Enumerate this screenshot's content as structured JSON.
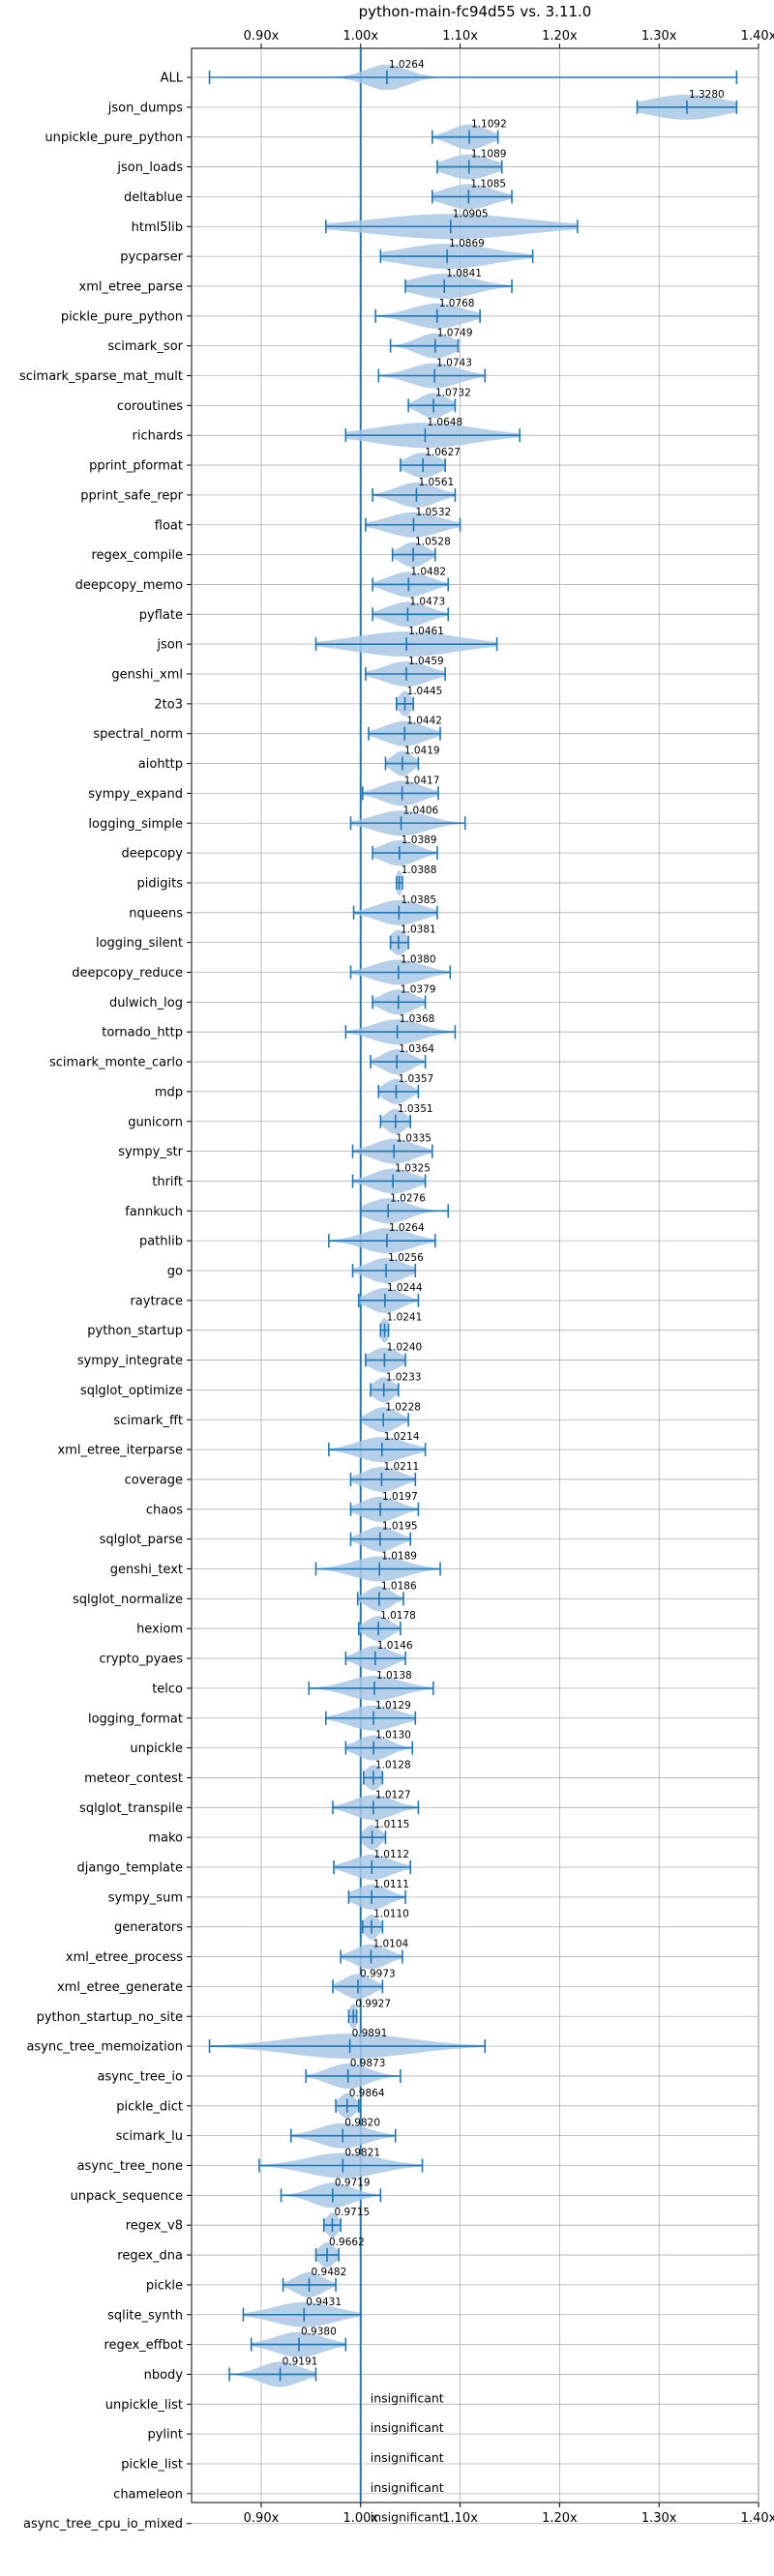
{
  "chart_data": {
    "type": "violin",
    "title": "python-main-fc94d55 vs. 3.11.0",
    "xlim": [
      0.83,
      1.4
    ],
    "x_ticks": [
      0.9,
      1.0,
      1.1,
      1.2,
      1.3,
      1.4
    ],
    "x_tick_labels": [
      "0.90x",
      "1.00x",
      "1.10x",
      "1.20x",
      "1.30x",
      "1.40x"
    ],
    "reference_line": 1.0,
    "grid": true,
    "colors": {
      "violin": "#a9c8e6",
      "line": "#1f77b4",
      "grid": "#b0b0b0"
    },
    "benchmarks": [
      {
        "name": "ALL",
        "mean": 1.0264,
        "min": 0.848,
        "max": 1.378,
        "spread": 0.02
      },
      {
        "name": "json_dumps",
        "mean": 1.328,
        "min": 1.278,
        "max": 1.378,
        "spread": 0.038
      },
      {
        "name": "unpickle_pure_python",
        "mean": 1.1092,
        "min": 1.072,
        "max": 1.138,
        "spread": 0.018
      },
      {
        "name": "json_loads",
        "mean": 1.1089,
        "min": 1.077,
        "max": 1.142,
        "spread": 0.022
      },
      {
        "name": "deltablue",
        "mean": 1.1085,
        "min": 1.072,
        "max": 1.152,
        "spread": 0.024
      },
      {
        "name": "html5lib",
        "mean": 1.0905,
        "min": 0.965,
        "max": 1.218,
        "spread": 0.075
      },
      {
        "name": "pycparser",
        "mean": 1.0869,
        "min": 1.02,
        "max": 1.173,
        "spread": 0.045
      },
      {
        "name": "xml_etree_parse",
        "mean": 1.0841,
        "min": 1.045,
        "max": 1.152,
        "spread": 0.03
      },
      {
        "name": "pickle_pure_python",
        "mean": 1.0768,
        "min": 1.015,
        "max": 1.12,
        "spread": 0.026
      },
      {
        "name": "scimark_sor",
        "mean": 1.0749,
        "min": 1.03,
        "max": 1.098,
        "spread": 0.018
      },
      {
        "name": "scimark_sparse_mat_mult",
        "mean": 1.0743,
        "min": 1.018,
        "max": 1.125,
        "spread": 0.024
      },
      {
        "name": "coroutines",
        "mean": 1.0732,
        "min": 1.048,
        "max": 1.095,
        "spread": 0.014
      },
      {
        "name": "richards",
        "mean": 1.0648,
        "min": 0.985,
        "max": 1.16,
        "spread": 0.05
      },
      {
        "name": "pprint_pformat",
        "mean": 1.0627,
        "min": 1.04,
        "max": 1.085,
        "spread": 0.016
      },
      {
        "name": "pprint_safe_repr",
        "mean": 1.0561,
        "min": 1.012,
        "max": 1.095,
        "spread": 0.02
      },
      {
        "name": "float",
        "mean": 1.0532,
        "min": 1.005,
        "max": 1.1,
        "spread": 0.026
      },
      {
        "name": "regex_compile",
        "mean": 1.0528,
        "min": 1.032,
        "max": 1.075,
        "spread": 0.013
      },
      {
        "name": "deepcopy_memo",
        "mean": 1.0482,
        "min": 1.012,
        "max": 1.088,
        "spread": 0.02
      },
      {
        "name": "pyflate",
        "mean": 1.0473,
        "min": 1.012,
        "max": 1.088,
        "spread": 0.02
      },
      {
        "name": "json",
        "mean": 1.0461,
        "min": 0.955,
        "max": 1.137,
        "spread": 0.05
      },
      {
        "name": "genshi_xml",
        "mean": 1.0459,
        "min": 1.005,
        "max": 1.085,
        "spread": 0.022
      },
      {
        "name": "2to3",
        "mean": 1.0445,
        "min": 1.036,
        "max": 1.053,
        "spread": 0.006
      },
      {
        "name": "spectral_norm",
        "mean": 1.0442,
        "min": 1.008,
        "max": 1.08,
        "spread": 0.02
      },
      {
        "name": "aiohttp",
        "mean": 1.0419,
        "min": 1.025,
        "max": 1.058,
        "spread": 0.01
      },
      {
        "name": "sympy_expand",
        "mean": 1.0417,
        "min": 1.002,
        "max": 1.078,
        "spread": 0.02
      },
      {
        "name": "logging_simple",
        "mean": 1.0406,
        "min": 0.99,
        "max": 1.105,
        "spread": 0.026
      },
      {
        "name": "deepcopy",
        "mean": 1.0389,
        "min": 1.012,
        "max": 1.077,
        "spread": 0.018
      },
      {
        "name": "pidigits",
        "mean": 1.0388,
        "min": 1.036,
        "max": 1.042,
        "spread": 0.003
      },
      {
        "name": "nqueens",
        "mean": 1.0385,
        "min": 0.993,
        "max": 1.077,
        "spread": 0.022
      },
      {
        "name": "logging_silent",
        "mean": 1.0381,
        "min": 1.03,
        "max": 1.048,
        "spread": 0.008
      },
      {
        "name": "deepcopy_reduce",
        "mean": 1.038,
        "min": 0.99,
        "max": 1.09,
        "spread": 0.024
      },
      {
        "name": "dulwich_log",
        "mean": 1.0379,
        "min": 1.012,
        "max": 1.065,
        "spread": 0.016
      },
      {
        "name": "tornado_http",
        "mean": 1.0368,
        "min": 0.985,
        "max": 1.095,
        "spread": 0.024
      },
      {
        "name": "scimark_monte_carlo",
        "mean": 1.0364,
        "min": 1.01,
        "max": 1.065,
        "spread": 0.014
      },
      {
        "name": "mdp",
        "mean": 1.0357,
        "min": 1.018,
        "max": 1.058,
        "spread": 0.012
      },
      {
        "name": "gunicorn",
        "mean": 1.0351,
        "min": 1.02,
        "max": 1.05,
        "spread": 0.01
      },
      {
        "name": "sympy_str",
        "mean": 1.0335,
        "min": 0.992,
        "max": 1.072,
        "spread": 0.02
      },
      {
        "name": "thrift",
        "mean": 1.0325,
        "min": 0.992,
        "max": 1.065,
        "spread": 0.02
      },
      {
        "name": "fannkuch",
        "mean": 1.0276,
        "min": 1.0,
        "max": 1.088,
        "spread": 0.02
      },
      {
        "name": "pathlib",
        "mean": 1.0264,
        "min": 0.968,
        "max": 1.075,
        "spread": 0.024
      },
      {
        "name": "go",
        "mean": 1.0256,
        "min": 0.992,
        "max": 1.055,
        "spread": 0.018
      },
      {
        "name": "raytrace",
        "mean": 1.0244,
        "min": 0.998,
        "max": 1.058,
        "spread": 0.016
      },
      {
        "name": "python_startup",
        "mean": 1.0241,
        "min": 1.02,
        "max": 1.028,
        "spread": 0.004
      },
      {
        "name": "sympy_integrate",
        "mean": 1.024,
        "min": 1.005,
        "max": 1.045,
        "spread": 0.014
      },
      {
        "name": "sqlglot_optimize",
        "mean": 1.0233,
        "min": 1.01,
        "max": 1.038,
        "spread": 0.01
      },
      {
        "name": "scimark_fft",
        "mean": 1.0228,
        "min": 1.0,
        "max": 1.048,
        "spread": 0.014
      },
      {
        "name": "xml_etree_iterparse",
        "mean": 1.0214,
        "min": 0.968,
        "max": 1.065,
        "spread": 0.024
      },
      {
        "name": "coverage",
        "mean": 1.0211,
        "min": 0.99,
        "max": 1.055,
        "spread": 0.018
      },
      {
        "name": "chaos",
        "mean": 1.0197,
        "min": 0.99,
        "max": 1.058,
        "spread": 0.018
      },
      {
        "name": "sqlglot_parse",
        "mean": 1.0195,
        "min": 0.99,
        "max": 1.05,
        "spread": 0.016
      },
      {
        "name": "genshi_text",
        "mean": 1.0189,
        "min": 0.955,
        "max": 1.08,
        "spread": 0.026
      },
      {
        "name": "sqlglot_normalize",
        "mean": 1.0186,
        "min": 0.997,
        "max": 1.043,
        "spread": 0.012
      },
      {
        "name": "hexiom",
        "mean": 1.0178,
        "min": 0.998,
        "max": 1.04,
        "spread": 0.012
      },
      {
        "name": "crypto_pyaes",
        "mean": 1.0146,
        "min": 0.985,
        "max": 1.045,
        "spread": 0.016
      },
      {
        "name": "telco",
        "mean": 1.0138,
        "min": 0.948,
        "max": 1.073,
        "spread": 0.026
      },
      {
        "name": "logging_format",
        "mean": 1.0129,
        "min": 0.965,
        "max": 1.055,
        "spread": 0.024
      },
      {
        "name": "unpickle",
        "mean": 1.013,
        "min": 0.985,
        "max": 1.052,
        "spread": 0.016
      },
      {
        "name": "meteor_contest",
        "mean": 1.0128,
        "min": 1.003,
        "max": 1.022,
        "spread": 0.008
      },
      {
        "name": "sqlglot_transpile",
        "mean": 1.0127,
        "min": 0.972,
        "max": 1.058,
        "spread": 0.02
      },
      {
        "name": "mako",
        "mean": 1.0115,
        "min": 1.0,
        "max": 1.025,
        "spread": 0.008
      },
      {
        "name": "django_template",
        "mean": 1.0112,
        "min": 0.973,
        "max": 1.05,
        "spread": 0.02
      },
      {
        "name": "sympy_sum",
        "mean": 1.0111,
        "min": 0.988,
        "max": 1.045,
        "spread": 0.016
      },
      {
        "name": "generators",
        "mean": 1.011,
        "min": 1.002,
        "max": 1.022,
        "spread": 0.007
      },
      {
        "name": "xml_etree_process",
        "mean": 1.0104,
        "min": 0.98,
        "max": 1.042,
        "spread": 0.016
      },
      {
        "name": "xml_etree_generate",
        "mean": 0.9973,
        "min": 0.972,
        "max": 1.022,
        "spread": 0.014
      },
      {
        "name": "python_startup_no_site",
        "mean": 0.9927,
        "min": 0.988,
        "max": 0.996,
        "spread": 0.004
      },
      {
        "name": "async_tree_memoization",
        "mean": 0.9891,
        "min": 0.848,
        "max": 1.125,
        "spread": 0.06
      },
      {
        "name": "async_tree_io",
        "mean": 0.9873,
        "min": 0.945,
        "max": 1.04,
        "spread": 0.02
      },
      {
        "name": "pickle_dict",
        "mean": 0.9864,
        "min": 0.975,
        "max": 0.998,
        "spread": 0.008
      },
      {
        "name": "scimark_lu",
        "mean": 0.982,
        "min": 0.93,
        "max": 1.035,
        "spread": 0.024
      },
      {
        "name": "async_tree_none",
        "mean": 0.9821,
        "min": 0.898,
        "max": 1.062,
        "spread": 0.036
      },
      {
        "name": "unpack_sequence",
        "mean": 0.9719,
        "min": 0.92,
        "max": 1.02,
        "spread": 0.02
      },
      {
        "name": "regex_v8",
        "mean": 0.9715,
        "min": 0.963,
        "max": 0.98,
        "spread": 0.006
      },
      {
        "name": "regex_dna",
        "mean": 0.9662,
        "min": 0.955,
        "max": 0.978,
        "spread": 0.008
      },
      {
        "name": "pickle",
        "mean": 0.9482,
        "min": 0.922,
        "max": 0.975,
        "spread": 0.014
      },
      {
        "name": "sqlite_synth",
        "mean": 0.9431,
        "min": 0.882,
        "max": 1.0,
        "spread": 0.03
      },
      {
        "name": "regex_effbot",
        "mean": 0.938,
        "min": 0.89,
        "max": 0.985,
        "spread": 0.024
      },
      {
        "name": "nbody",
        "mean": 0.9191,
        "min": 0.868,
        "max": 0.955,
        "spread": 0.02
      },
      {
        "name": "unpickle_list",
        "insignificant": true
      },
      {
        "name": "pylint",
        "insignificant": true
      },
      {
        "name": "pickle_list",
        "insignificant": true
      },
      {
        "name": "chameleon",
        "insignificant": true
      },
      {
        "name": "async_tree_cpu_io_mixed",
        "insignificant": true
      }
    ],
    "insignificant_label": "insignificant"
  }
}
